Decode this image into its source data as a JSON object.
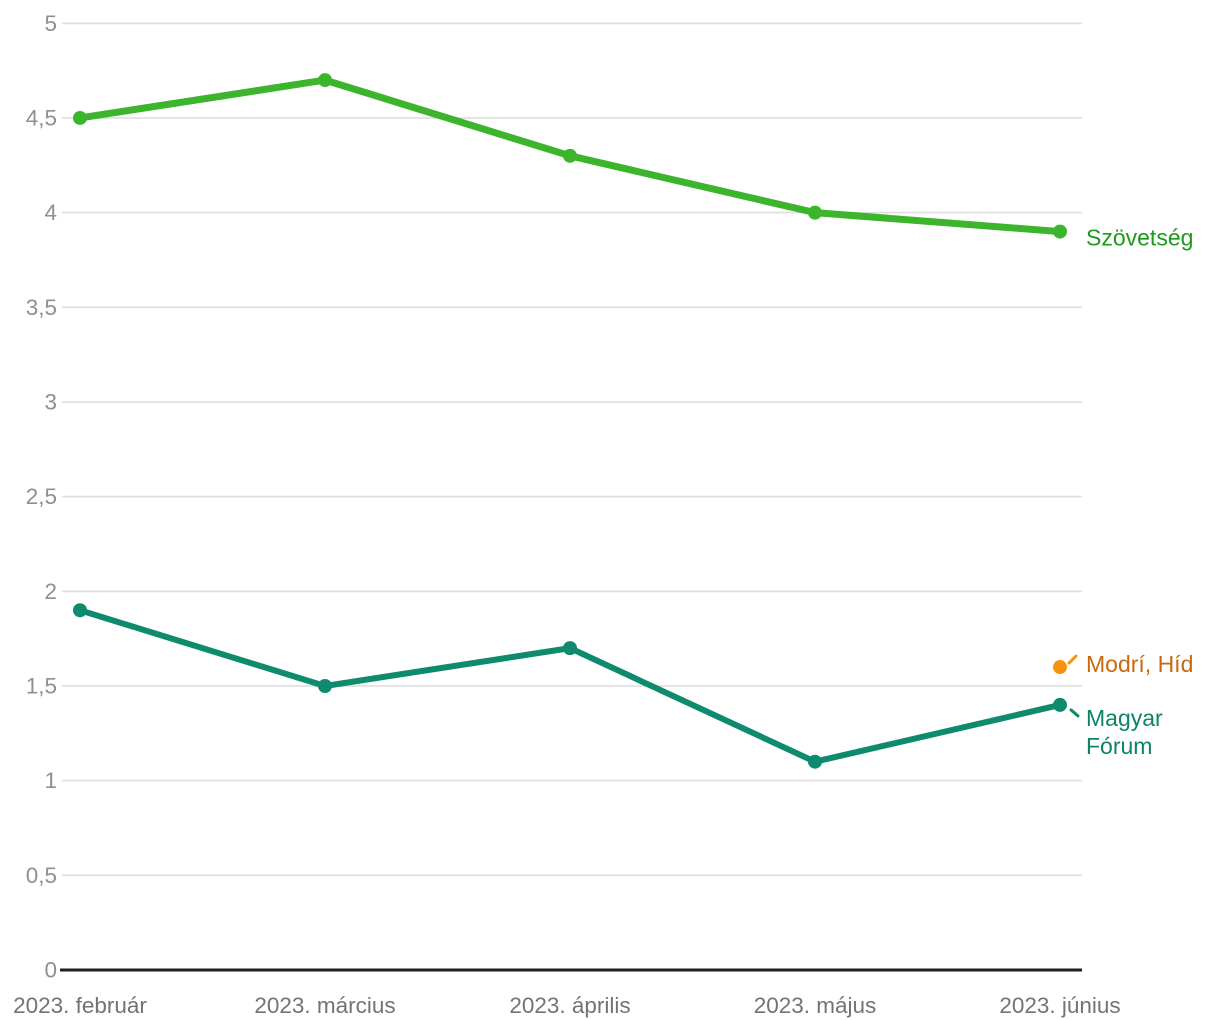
{
  "chart_data": {
    "type": "line",
    "title": "",
    "xlabel": "",
    "ylabel": "",
    "ylim": [
      0,
      5
    ],
    "grid": true,
    "legend_position": "right-inline",
    "x_labels": [
      "2023. február",
      "2023. március",
      "2023. április",
      "2023. május",
      "2023. június"
    ],
    "y_ticks": [
      {
        "value": 0,
        "label": "0"
      },
      {
        "value": 0.5,
        "label": "0,5"
      },
      {
        "value": 1,
        "label": "1"
      },
      {
        "value": 1.5,
        "label": "1,5"
      },
      {
        "value": 2,
        "label": "2"
      },
      {
        "value": 2.5,
        "label": "2,5"
      },
      {
        "value": 3,
        "label": "3"
      },
      {
        "value": 3.5,
        "label": "3,5"
      },
      {
        "value": 4,
        "label": "4"
      },
      {
        "value": 4.5,
        "label": "4,5"
      },
      {
        "value": 5,
        "label": "5"
      }
    ],
    "series": [
      {
        "name": "Szövetség",
        "values": [
          4.5,
          4.7,
          4.3,
          4.0,
          3.9
        ],
        "line_color": "#3cb42c",
        "label_color": "#1b9a1b",
        "line_width": 7,
        "label_lines": [
          "Szövetség"
        ],
        "label_dy": 6,
        "leader": null
      },
      {
        "name": "Magyar Fórum",
        "values": [
          1.9,
          1.5,
          1.7,
          1.1,
          1.4
        ],
        "line_color": "#0e8a6e",
        "label_color": "#0d8468",
        "line_width": 6,
        "label_lines": [
          "Magyar",
          "Fórum"
        ],
        "label_dy": 13,
        "leader": "down"
      },
      {
        "name": "Modrí, Híd",
        "values": [
          null,
          null,
          null,
          null,
          1.6
        ],
        "line_color": "#f7940e",
        "label_color": "#c8690e",
        "line_width": 6,
        "label_lines": [
          "Modrí, Híd"
        ],
        "label_dy": -3,
        "leader": "up"
      }
    ],
    "colors": {
      "gridline": "#e0e0e0",
      "axis_line": "#1f1f1f",
      "y_tick_text": "#8f8f8f",
      "x_tick_text": "#737373",
      "background": "#ffffff"
    }
  }
}
